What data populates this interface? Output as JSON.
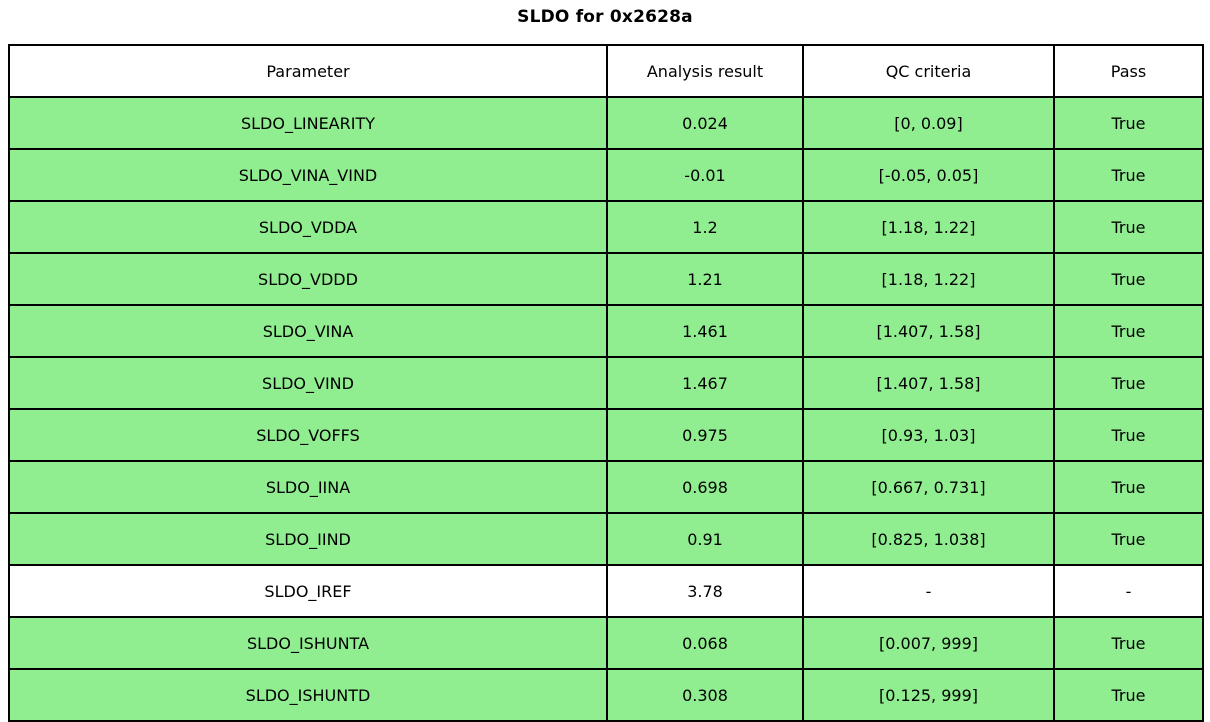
{
  "title": "SLDO for 0x2628a",
  "colors": {
    "row_pass_green": "#90ee90",
    "row_neutral_white": "#ffffff",
    "border_black": "#000000"
  },
  "chart_data": {
    "type": "table",
    "title": "SLDO for 0x2628a",
    "columns": [
      "Parameter",
      "Analysis result",
      "QC criteria",
      "Pass"
    ],
    "rows": [
      [
        "SLDO_LINEARITY",
        "0.024",
        "[0, 0.09]",
        "True"
      ],
      [
        "SLDO_VINA_VIND",
        "-0.01",
        "[-0.05, 0.05]",
        "True"
      ],
      [
        "SLDO_VDDA",
        "1.2",
        "[1.18, 1.22]",
        "True"
      ],
      [
        "SLDO_VDDD",
        "1.21",
        "[1.18, 1.22]",
        "True"
      ],
      [
        "SLDO_VINA",
        "1.461",
        "[1.407, 1.58]",
        "True"
      ],
      [
        "SLDO_VIND",
        "1.467",
        "[1.407, 1.58]",
        "True"
      ],
      [
        "SLDO_VOFFS",
        "0.975",
        "[0.93, 1.03]",
        "True"
      ],
      [
        "SLDO_IINA",
        "0.698",
        "[0.667, 0.731]",
        "True"
      ],
      [
        "SLDO_IIND",
        "0.91",
        "[0.825, 1.038]",
        "True"
      ],
      [
        "SLDO_IREF",
        "3.78",
        "-",
        "-"
      ],
      [
        "SLDO_ISHUNTA",
        "0.068",
        "[0.007, 999]",
        "True"
      ],
      [
        "SLDO_ISHUNTD",
        "0.308",
        "[0.125, 999]",
        "True"
      ]
    ],
    "row_highlight": [
      true,
      true,
      true,
      true,
      true,
      true,
      true,
      true,
      true,
      false,
      true,
      true
    ]
  }
}
